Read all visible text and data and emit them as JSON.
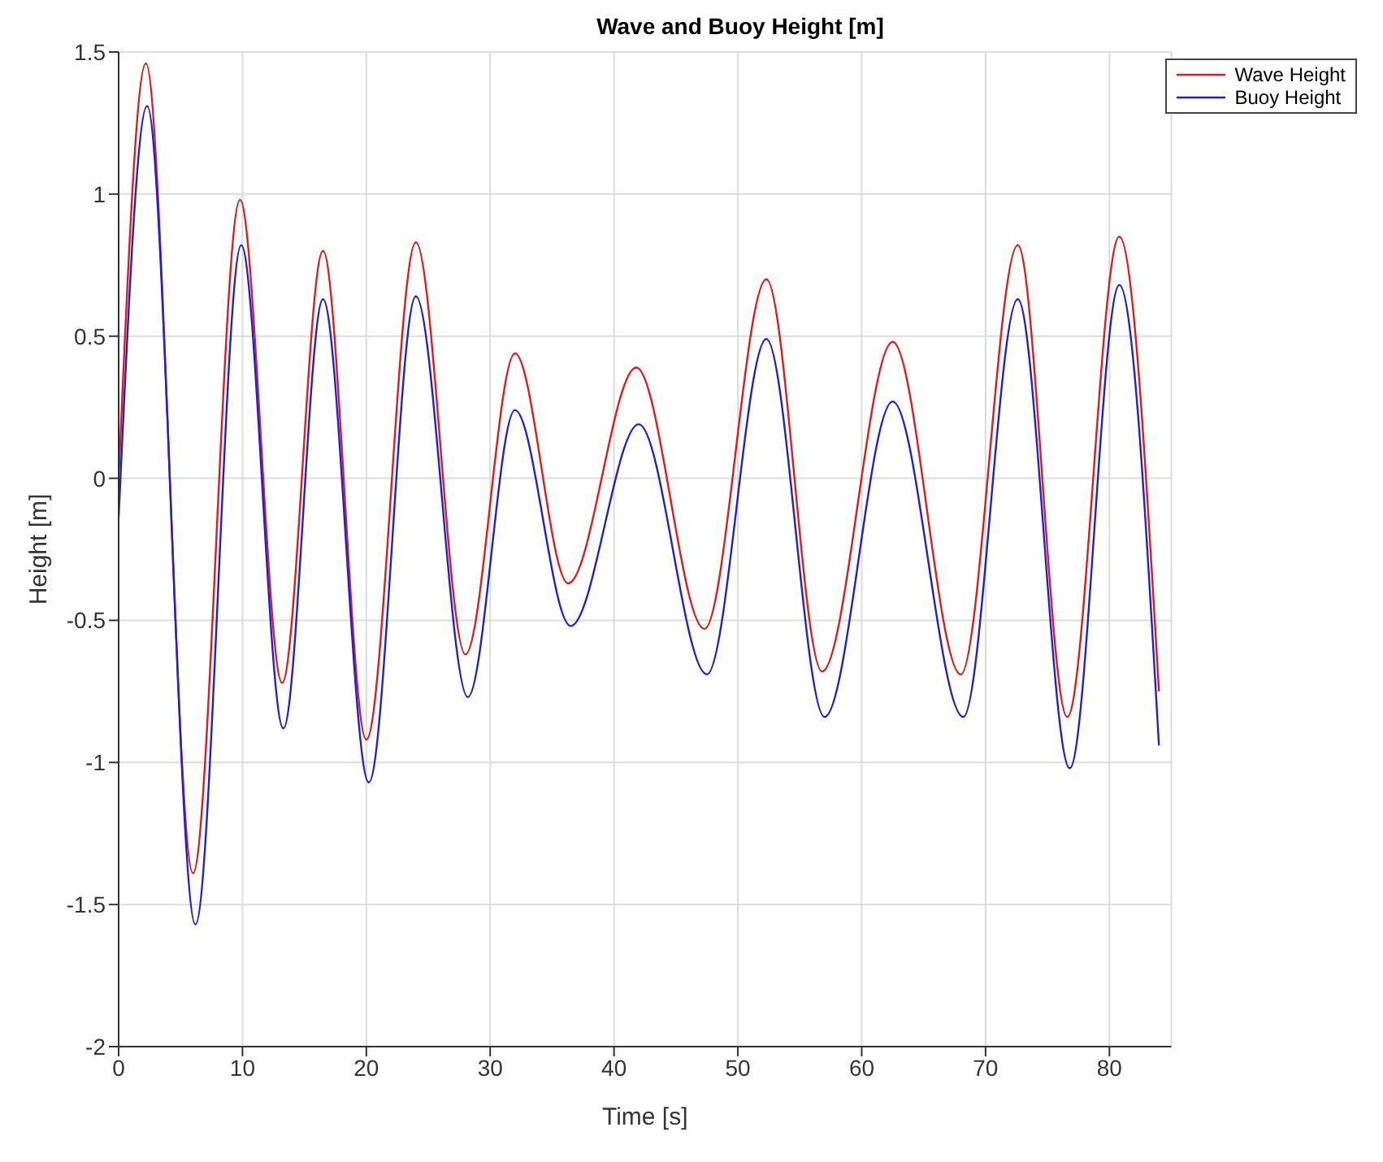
{
  "chart_data": {
    "type": "line",
    "title": "Wave and Buoy Height [m]",
    "xlabel": "Time [s]",
    "ylabel": "Height [m]",
    "series": [
      {
        "name": "Wave Height",
        "color": "#e31a1c",
        "x": [
          0,
          2.2,
          6,
          9.8,
          13.2,
          16.5,
          20,
          24,
          28,
          32,
          36.3,
          41.8,
          47.3,
          52.3,
          56.8,
          62.5,
          68,
          72.6,
          76.6,
          80.8,
          84
        ],
        "values": [
          0,
          1.46,
          -1.39,
          0.98,
          -0.72,
          0.8,
          -0.92,
          0.83,
          -0.62,
          0.44,
          -0.37,
          0.39,
          -0.53,
          0.7,
          -0.68,
          0.48,
          -0.69,
          0.82,
          -0.84,
          0.85,
          -0.75
        ]
      },
      {
        "name": "Buoy Height",
        "color": "#1f1fd6",
        "x": [
          0,
          2.3,
          6.2,
          9.9,
          13.3,
          16.5,
          20.2,
          24,
          28.2,
          32,
          36.5,
          42,
          47.5,
          52.3,
          57,
          62.5,
          68.2,
          72.6,
          76.8,
          80.8,
          84
        ],
        "values": [
          -0.14,
          1.31,
          -1.57,
          0.82,
          -0.88,
          0.63,
          -1.07,
          0.64,
          -0.77,
          0.24,
          -0.52,
          0.19,
          -0.69,
          0.49,
          -0.84,
          0.27,
          -0.84,
          0.63,
          -1.02,
          0.68,
          -0.94
        ]
      }
    ],
    "xlim": [
      0,
      85
    ],
    "xticks": [
      0,
      10,
      20,
      30,
      40,
      50,
      60,
      70,
      80
    ],
    "ylim": [
      -2,
      1.5
    ],
    "yticks": [
      -2,
      -1.5,
      -1,
      -0.5,
      0,
      0.5,
      1,
      1.5
    ],
    "grid": true,
    "legend": "top right",
    "marker": "none",
    "line_style": "solid"
  }
}
